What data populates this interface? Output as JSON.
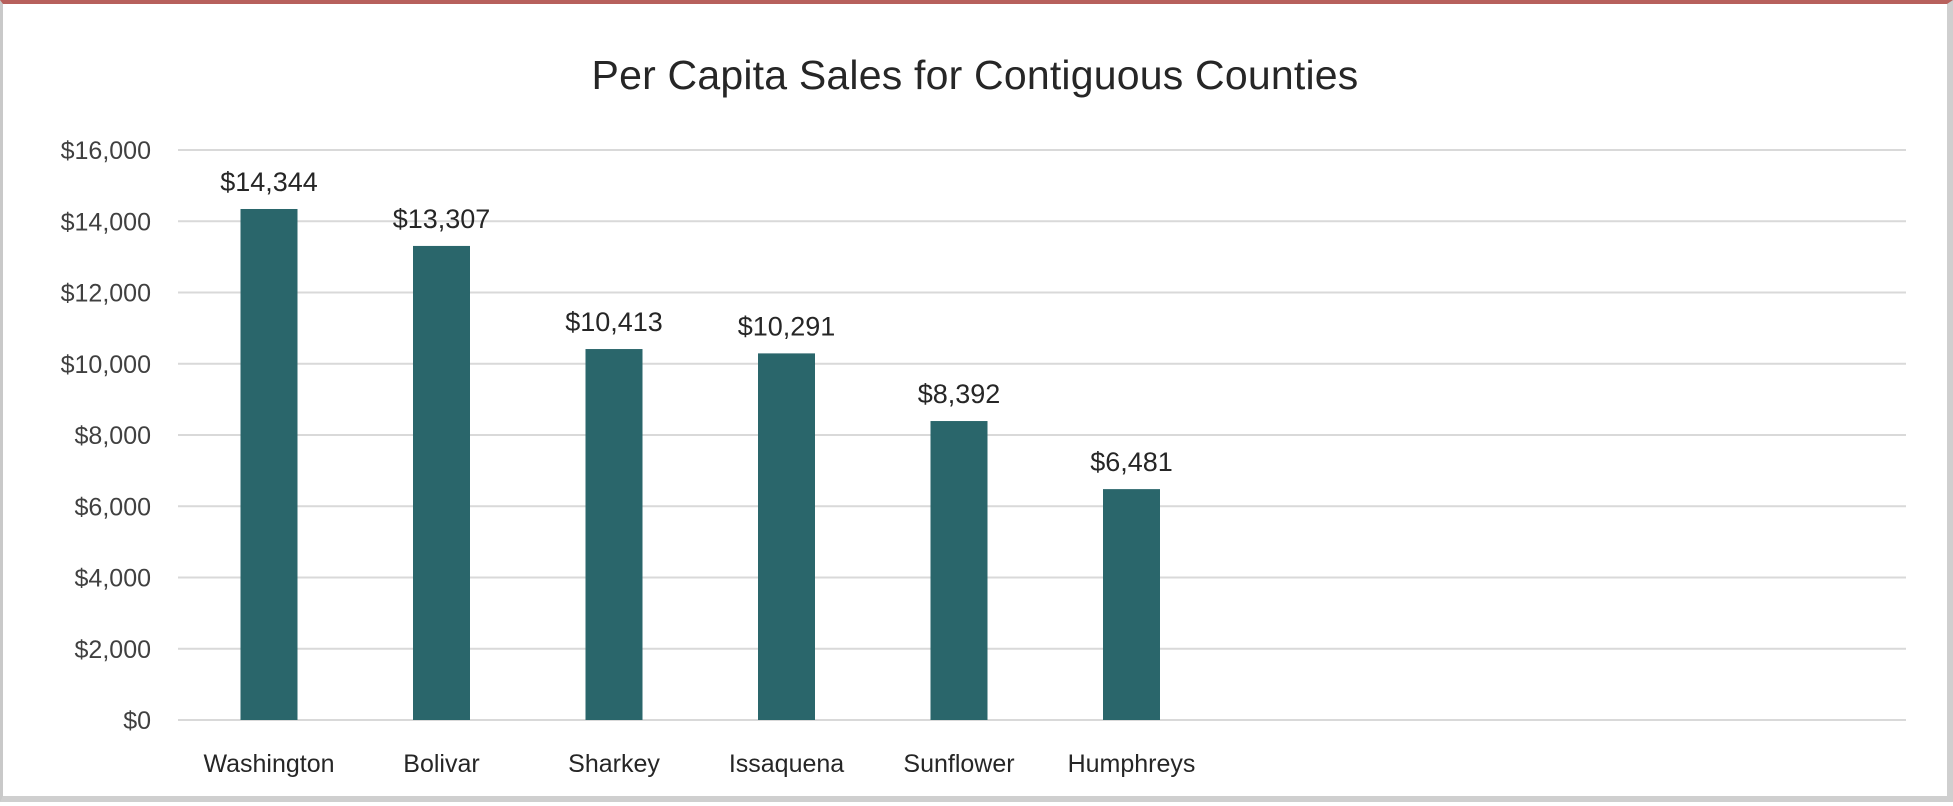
{
  "chart_data": {
    "type": "bar",
    "title": "Per Capita Sales for Contiguous Counties",
    "xlabel": "",
    "ylabel": "",
    "ylim": [
      0,
      16000
    ],
    "yticks": [
      0,
      2000,
      4000,
      6000,
      8000,
      10000,
      12000,
      14000,
      16000
    ],
    "ytick_labels": [
      "$0",
      "$2,000",
      "$4,000",
      "$6,000",
      "$8,000",
      "$10,000",
      "$12,000",
      "$14,000",
      "$16,000"
    ],
    "categories": [
      "Washington",
      "Bolivar",
      "Sharkey",
      "Issaquena",
      "Sunflower",
      "Humphreys"
    ],
    "values": [
      14344,
      13307,
      10413,
      10291,
      8392,
      6481
    ],
    "data_labels": [
      "$14,344",
      "$13,307",
      "$10,413",
      "$10,291",
      "$8,392",
      "$6,481"
    ],
    "bar_color": "#2a666b",
    "grid": true,
    "legend": "none"
  }
}
